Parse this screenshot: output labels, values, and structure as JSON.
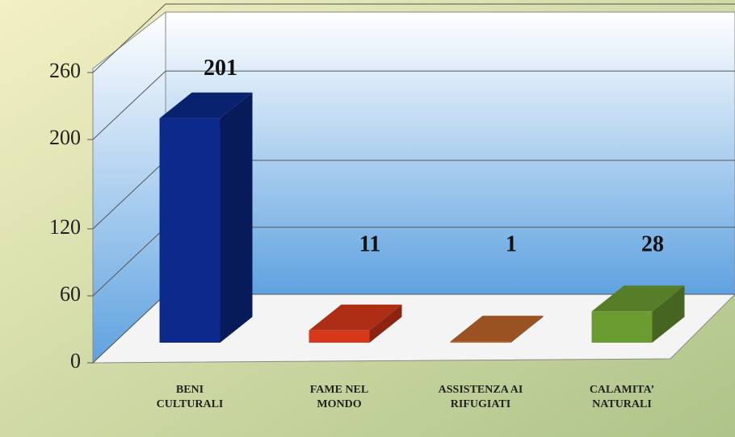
{
  "chart_data": {
    "type": "bar3d",
    "categories": [
      "BENI CULTURALI",
      "FAME NEL MONDO",
      "ASSISTENZA AI RIFUGIATI",
      "CALAMITA’ NATURALI"
    ],
    "values": [
      201,
      11,
      1,
      28
    ],
    "colors": [
      "#0b2a8c",
      "#d8381a",
      "#c0662a",
      "#6b9c32"
    ],
    "ylim": [
      0,
      260
    ],
    "yticks": [
      0,
      60,
      120,
      200,
      260
    ],
    "grid": true
  }
}
